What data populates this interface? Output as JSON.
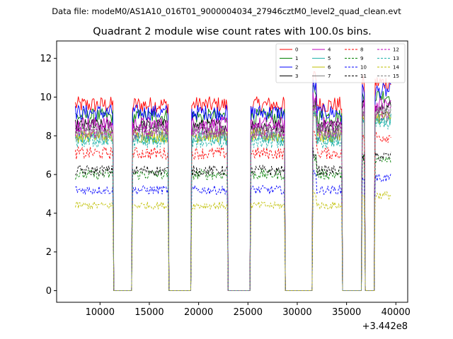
{
  "chart_data": {
    "type": "line",
    "suptitle": "Data file: modeM0/AS1A10_016T01_9000004034_27946cztM0_level2_quad_clean.evt",
    "title": "Quadrant 2 module wise count rates with 100.0s bins.",
    "xlabel": "",
    "ylabel": "",
    "x_offset_label": "+3.442e8",
    "xlim": [
      5600,
      41200
    ],
    "ylim": [
      -0.6,
      12.9
    ],
    "x_ticks": [
      10000,
      15000,
      20000,
      25000,
      30000,
      35000,
      40000
    ],
    "x_tick_labels": [
      "10000",
      "15000",
      "20000",
      "25000",
      "30000",
      "35000",
      "40000"
    ],
    "y_ticks": [
      0,
      2,
      4,
      6,
      8,
      10,
      12
    ],
    "y_tick_labels": [
      "0",
      "2",
      "4",
      "6",
      "8",
      "10",
      "12"
    ],
    "bin_size_s": 100,
    "good_time_segments": [
      [
        7500,
        11300
      ],
      [
        13300,
        16900
      ],
      [
        19300,
        22900
      ],
      [
        25300,
        28700
      ],
      [
        31600,
        34500
      ],
      [
        36600,
        36800
      ],
      [
        37900,
        39500
      ]
    ],
    "legend": {
      "location": "top-right",
      "columns": 4
    },
    "series": [
      {
        "name": "0",
        "mean_rate": 9.6,
        "color": "#ff0000",
        "style": "solid"
      },
      {
        "name": "1",
        "mean_rate": 9.0,
        "color": "#008000",
        "style": "solid"
      },
      {
        "name": "2",
        "mean_rate": 9.2,
        "color": "#0000ff",
        "style": "solid"
      },
      {
        "name": "3",
        "mean_rate": 8.5,
        "color": "#000000",
        "style": "solid"
      },
      {
        "name": "4",
        "mean_rate": 8.6,
        "color": "#bf00bf",
        "style": "solid"
      },
      {
        "name": "5",
        "mean_rate": 7.9,
        "color": "#20b2aa",
        "style": "solid"
      },
      {
        "name": "6",
        "mean_rate": 8.0,
        "color": "#bfbf00",
        "style": "solid"
      },
      {
        "name": "7",
        "mean_rate": 8.1,
        "color": "#808080",
        "style": "solid"
      },
      {
        "name": "8",
        "mean_rate": 7.1,
        "color": "#ff0000",
        "style": "dashed"
      },
      {
        "name": "9",
        "mean_rate": 6.0,
        "color": "#008000",
        "style": "dashed"
      },
      {
        "name": "10",
        "mean_rate": 5.2,
        "color": "#0000ff",
        "style": "dashed"
      },
      {
        "name": "11",
        "mean_rate": 6.2,
        "color": "#000000",
        "style": "dashed"
      },
      {
        "name": "12",
        "mean_rate": 8.2,
        "color": "#bf00bf",
        "style": "dashed"
      },
      {
        "name": "13",
        "mean_rate": 7.7,
        "color": "#20b2aa",
        "style": "dashed"
      },
      {
        "name": "14",
        "mean_rate": 4.4,
        "color": "#bfbf00",
        "style": "dashed"
      },
      {
        "name": "15",
        "mean_rate": 8.3,
        "color": "#808080",
        "style": "dashed"
      }
    ]
  }
}
